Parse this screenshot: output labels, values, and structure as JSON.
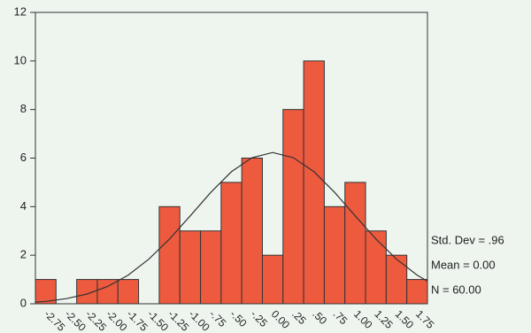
{
  "chart_data": {
    "type": "bar",
    "categories": [
      "-2.75",
      "-2.50",
      "-2.25",
      "-2.00",
      "-1.75",
      "-1.50",
      "-1.25",
      "-1.00",
      "-.75",
      "-.50",
      "-.25",
      "0.00",
      ".25",
      ".50",
      ".75",
      "1.00",
      "1.25",
      "1.50",
      "1.75"
    ],
    "values": [
      1,
      0,
      1,
      1,
      1,
      0,
      4,
      3,
      3,
      5,
      6,
      2,
      8,
      10,
      4,
      5,
      3,
      2,
      1
    ],
    "color": "#ee5a3e",
    "ylim": [
      0,
      12
    ],
    "yticks": [
      0,
      2,
      4,
      6,
      8,
      10,
      12
    ],
    "xlim": [
      -2.875,
      1.875
    ],
    "normal_curve": {
      "x": [
        -2.875,
        -2.75,
        -2.5,
        -2.25,
        -2,
        -1.75,
        -1.5,
        -1.25,
        -1,
        -0.75,
        -0.5,
        -0.25,
        0,
        0.25,
        0.5,
        0.75,
        1,
        1.25,
        1.5,
        1.75,
        1.875
      ],
      "values": [
        0.07,
        0.1,
        0.21,
        0.4,
        0.71,
        1.18,
        1.84,
        2.67,
        3.62,
        4.59,
        5.44,
        6.02,
        6.23,
        6.02,
        5.44,
        4.59,
        3.62,
        2.67,
        1.84,
        1.18,
        0.93
      ]
    },
    "stats": [
      "Std. Dev = .96",
      "Mean = 0.00",
      "N = 60.00"
    ]
  }
}
